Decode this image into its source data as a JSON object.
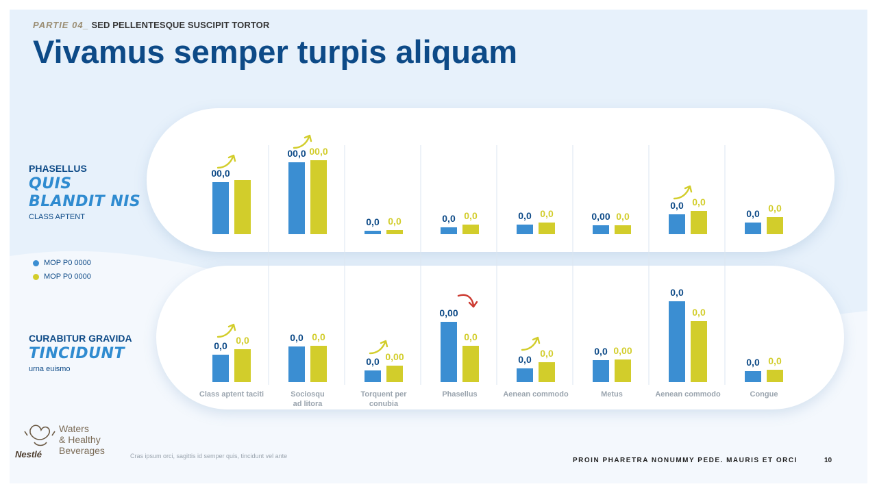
{
  "slide": {
    "part_label": "PARTIE 04_",
    "subtitle": "SED PELLENTESQUE SUSCIPIT TORTOR",
    "title": "Vivamus semper turpis aliquam"
  },
  "colors": {
    "blue": "#3b8ed2",
    "yellow": "#d2cd2b",
    "red": "#cc3a31",
    "title": "#0d4a87"
  },
  "top_block": {
    "kicker": "PHASELLUS",
    "accent": "QUIS BLANDIT NIS",
    "sub": "CLASS APTENT"
  },
  "bottom_block": {
    "kicker": "CURABITUR GRAVIDA",
    "accent": "TINCIDUNT",
    "sub": "urna euismo"
  },
  "legend": [
    {
      "label": "MOP P0 0000",
      "color": "#3b8ed2"
    },
    {
      "label": "MOP P0 0000",
      "color": "#d2cd2b"
    }
  ],
  "chart_data": [
    {
      "type": "bar",
      "series": [
        {
          "name": "MOP P0 0000",
          "values": [
            76,
            105,
            5,
            10,
            14,
            13,
            29,
            17
          ],
          "labels": [
            "00,0",
            "00,0",
            "0,0",
            "0,0",
            "0,0",
            "0,00",
            "0,0",
            "0,0"
          ]
        },
        {
          "name": "MOP P0 0000",
          "values": [
            79,
            108,
            6,
            14,
            17,
            13,
            34,
            25
          ],
          "labels": [
            "",
            "00,0",
            "0,0",
            "0,0",
            "0,0",
            "0,0",
            "0,0",
            "0,0"
          ]
        }
      ],
      "trend": [
        "up",
        "up",
        "none",
        "none",
        "none",
        "none",
        "up",
        "none"
      ]
    },
    {
      "type": "bar",
      "categories": [
        "Class aptent taciti",
        "Sociosqu ad litora",
        "Torquent per conubia",
        "Phasellus",
        "Aenean commodo",
        "Metus",
        "Aenean commodo",
        "Congue"
      ],
      "series": [
        {
          "name": "MOP P0 0000",
          "values": [
            40,
            52,
            17,
            88,
            20,
            32,
            118,
            16
          ],
          "labels": [
            "0,0",
            "0,0",
            "0,0",
            "0,00",
            "0,0",
            "0,0",
            "0,0",
            "0,0"
          ]
        },
        {
          "name": "MOP P0 0000",
          "values": [
            48,
            53,
            24,
            53,
            29,
            33,
            89,
            18
          ],
          "labels": [
            "0,0",
            "0,0",
            "0,00",
            "0,0",
            "0,0",
            "0,00",
            "0,0",
            "0,0"
          ]
        }
      ],
      "trend": [
        "up",
        "none",
        "up",
        "down",
        "up",
        "none",
        "none",
        "none"
      ]
    }
  ],
  "footer": {
    "note": "Cras ipsum orci, sagittis id semper quis, tincidunt vel ante",
    "text": "PROIN PHARETRA NONUMMY PEDE. MAURIS ET ORCI",
    "page": "10"
  },
  "brand": {
    "line1": "Waters",
    "line2": "& Healthy",
    "line3": "Beverages",
    "word": "Nestlé"
  }
}
